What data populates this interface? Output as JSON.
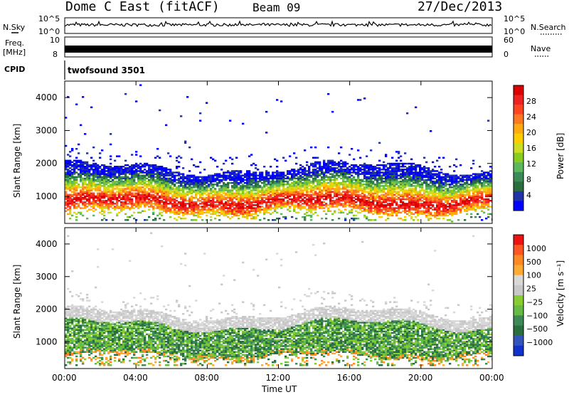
{
  "header": {
    "station": "Dome C East (fitACF)",
    "beam": "Beam 09",
    "date": "27/Dec/2013"
  },
  "aux_panels": {
    "nsky_label": "N.Sky",
    "nsearch_label": "N.Search",
    "noise_left_ticks": [
      "10^5",
      "10^0"
    ],
    "noise_right_ticks": [
      "10^5",
      "10^0"
    ],
    "freq_label_1": "Freq.",
    "freq_label_2": "[MHz]",
    "freq_ticks": [
      "10",
      "8"
    ],
    "nave_label": "Nave",
    "nave_ticks": [
      "60",
      "0"
    ],
    "cpid_label": "CPID",
    "cpid_text": "twofsound 3501"
  },
  "chart_data": [
    {
      "type": "heatmap",
      "title": "",
      "xlabel": "Time UT",
      "ylabel": "Slant Range [km]",
      "x_ticks": [
        "00:00",
        "04:00",
        "08:00",
        "12:00",
        "16:00",
        "20:00",
        "00:00"
      ],
      "xlim": [
        0,
        24
      ],
      "y_ticks": [
        "1000",
        "2000",
        "3000",
        "4000"
      ],
      "ylim": [
        180,
        4500
      ],
      "colorbar": {
        "label": "Power [dB]",
        "ticks": [
          "4",
          "8",
          "12",
          "16",
          "20",
          "24",
          "28"
        ],
        "range": [
          0,
          30
        ],
        "colors": [
          "#0000ff",
          "#2233aa",
          "#2a6e40",
          "#3c8a56",
          "#5cb85c",
          "#88cc22",
          "#ccdd22",
          "#ffcc00",
          "#ffaa11",
          "#ff7722",
          "#ff4422",
          "#ee2222",
          "#dd0000"
        ]
      }
    },
    {
      "type": "heatmap",
      "title": "",
      "xlabel": "Time UT",
      "ylabel": "Slant Range [km]",
      "x_ticks": [
        "00:00",
        "04:00",
        "08:00",
        "12:00",
        "16:00",
        "20:00",
        "00:00"
      ],
      "xlim": [
        0,
        24
      ],
      "y_ticks": [
        "1000",
        "2000",
        "3000",
        "4000"
      ],
      "ylim": [
        180,
        4500
      ],
      "colorbar": {
        "label": "Velocity [m s⁻¹]",
        "ticks": [
          "1000",
          "500",
          "100",
          "25",
          "−25",
          "−100",
          "−500",
          "−1000"
        ],
        "range": [
          -1000,
          1000
        ],
        "colors": [
          "#1133cc",
          "#3355bb",
          "#2a6e40",
          "#3c8a56",
          "#66bb44",
          "#88cc33",
          "#c8c8c8",
          "#d8d8d8",
          "#ffaa33",
          "#ff8822",
          "#ff5522",
          "#ee1111"
        ]
      }
    }
  ]
}
